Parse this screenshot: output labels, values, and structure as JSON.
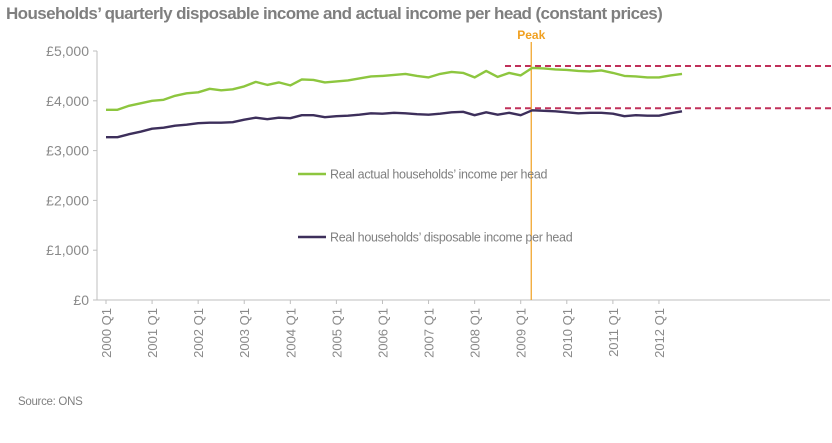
{
  "chart_data": {
    "type": "line",
    "title": "Households’ quarterly disposable income and actual income per head (constant prices)",
    "xlabel": "",
    "ylabel": "",
    "ylim": [
      0,
      5000
    ],
    "yticks": [
      0,
      1000,
      2000,
      3000,
      4000,
      5000
    ],
    "ytick_labels": [
      "£0",
      "£1,000",
      "£2,000",
      "£3,000",
      "£4,000",
      "£5,000"
    ],
    "xtick_labels": [
      "2000 Q1",
      "2001 Q1",
      "2002 Q1",
      "2003 Q1",
      "2004 Q1",
      "2005 Q1",
      "2006 Q1",
      "2007 Q1",
      "2008 Q1",
      "2009 Q1",
      "2010 Q1",
      "2011 Q1",
      "2012 Q1"
    ],
    "quarters_count": 51,
    "series": [
      {
        "name": "Real actual households’ income per head",
        "color": "#8dc63f",
        "values": [
          3820,
          3820,
          3900,
          3950,
          4000,
          4020,
          4100,
          4150,
          4170,
          4240,
          4210,
          4230,
          4290,
          4380,
          4320,
          4370,
          4310,
          4430,
          4420,
          4370,
          4390,
          4410,
          4450,
          4490,
          4500,
          4520,
          4540,
          4500,
          4470,
          4540,
          4580,
          4560,
          4470,
          4600,
          4480,
          4560,
          4510,
          4660,
          4650,
          4630,
          4620,
          4600,
          4590,
          4610,
          4560,
          4500,
          4490,
          4470,
          4470,
          4510,
          4540
        ]
      },
      {
        "name": "Real households’ disposable income per head",
        "color": "#3d2f5b",
        "values": [
          3270,
          3270,
          3330,
          3380,
          3440,
          3460,
          3500,
          3520,
          3550,
          3560,
          3560,
          3570,
          3620,
          3660,
          3630,
          3660,
          3650,
          3710,
          3710,
          3670,
          3690,
          3700,
          3720,
          3750,
          3740,
          3760,
          3750,
          3730,
          3720,
          3740,
          3770,
          3780,
          3710,
          3770,
          3720,
          3760,
          3710,
          3810,
          3800,
          3790,
          3770,
          3750,
          3760,
          3760,
          3740,
          3690,
          3710,
          3700,
          3700,
          3750,
          3790
        ]
      }
    ],
    "peak": {
      "label": "Peak",
      "quarter_index": 37
    },
    "reference_lines": [
      4700,
      3850
    ],
    "source": "Source: ONS"
  }
}
